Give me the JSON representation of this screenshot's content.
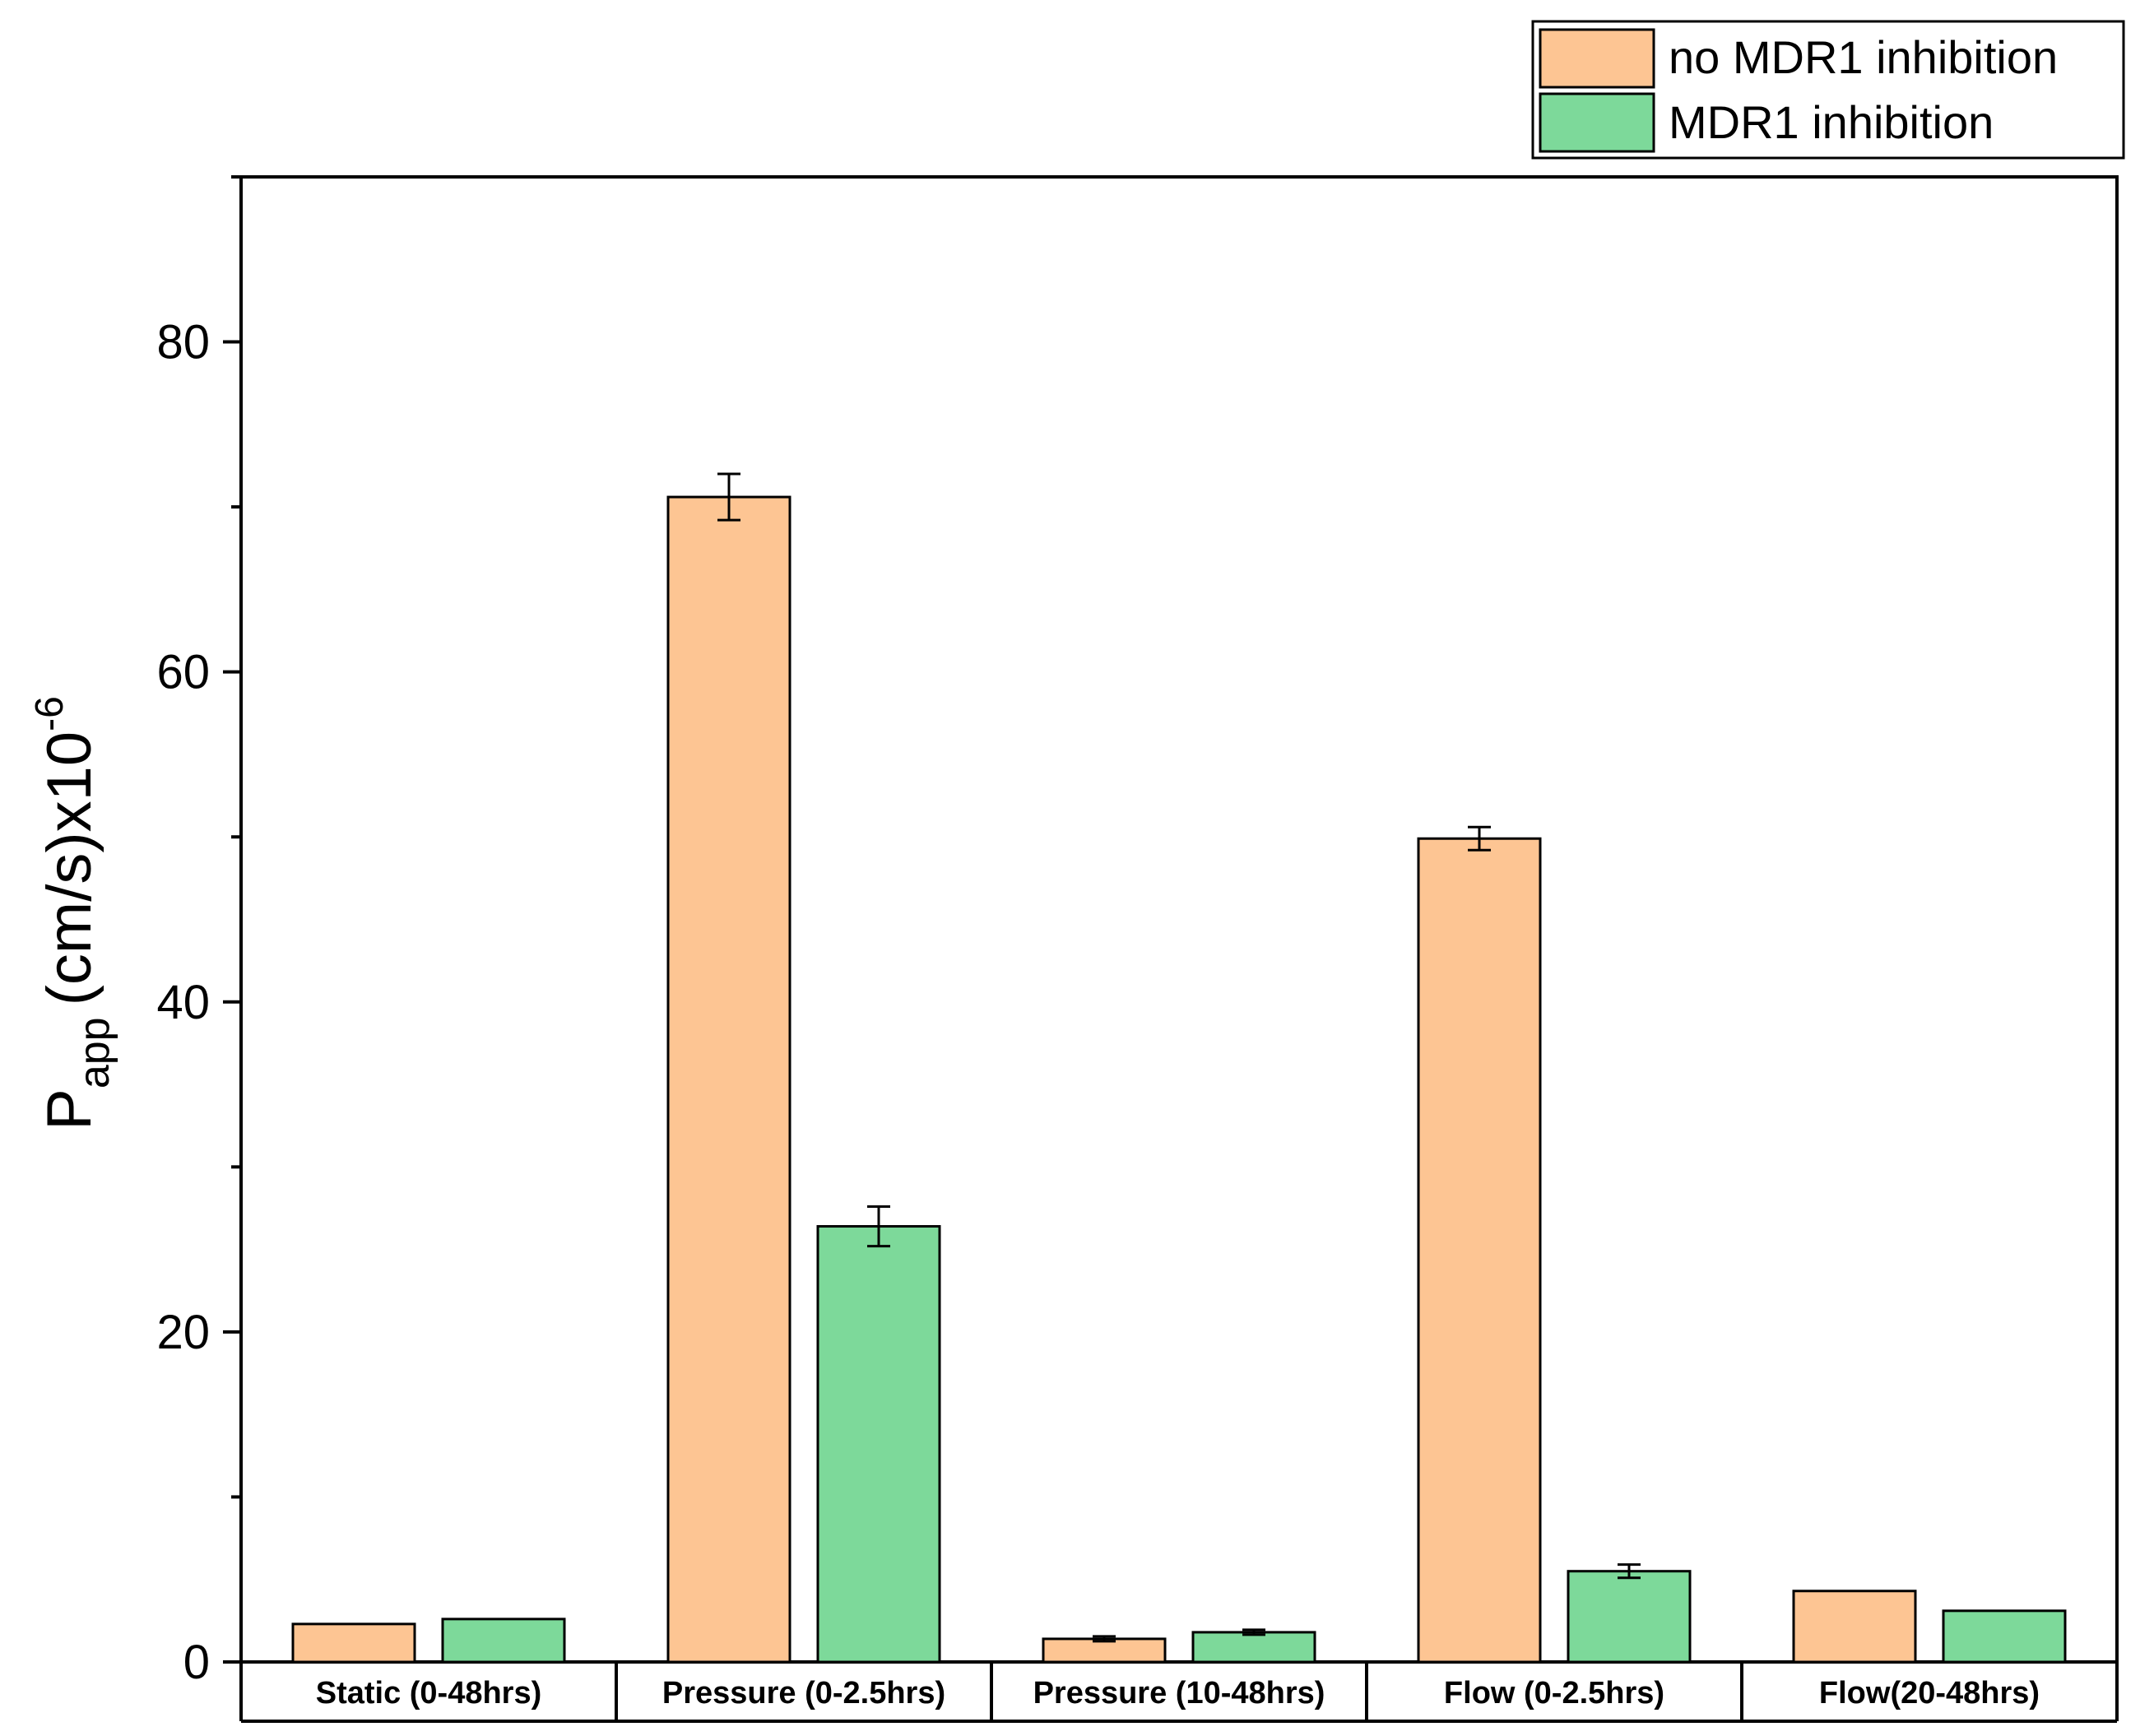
{
  "chart_data": {
    "type": "bar",
    "title": "",
    "xlabel": "",
    "ylabel": {
      "main": "P",
      "subscript": "app",
      "unit": "(cm/s)x10",
      "superscript": "-6"
    },
    "ylim": [
      0,
      90
    ],
    "yticks": [
      0,
      20,
      40,
      60,
      80
    ],
    "categories": [
      "Static (0-48hrs)",
      "Pressure (0-2.5hrs)",
      "Pressure (10-48hrs)",
      "Flow (0-2.5hrs)",
      "Flow(20-48hrs)"
    ],
    "series": [
      {
        "name": "no MDR1 inhibition",
        "color": "#FDC593",
        "values": [
          2.3,
          70.6,
          1.4,
          49.9,
          4.3
        ],
        "errors": [
          0,
          1.4,
          0.15,
          0.7,
          0
        ]
      },
      {
        "name": "MDR1 inhibition",
        "color": "#7DD99A",
        "values": [
          2.6,
          26.4,
          1.8,
          5.5,
          3.1
        ],
        "errors": [
          0,
          1.2,
          0.15,
          0.4,
          0
        ]
      }
    ],
    "legend_position": "top-right"
  }
}
